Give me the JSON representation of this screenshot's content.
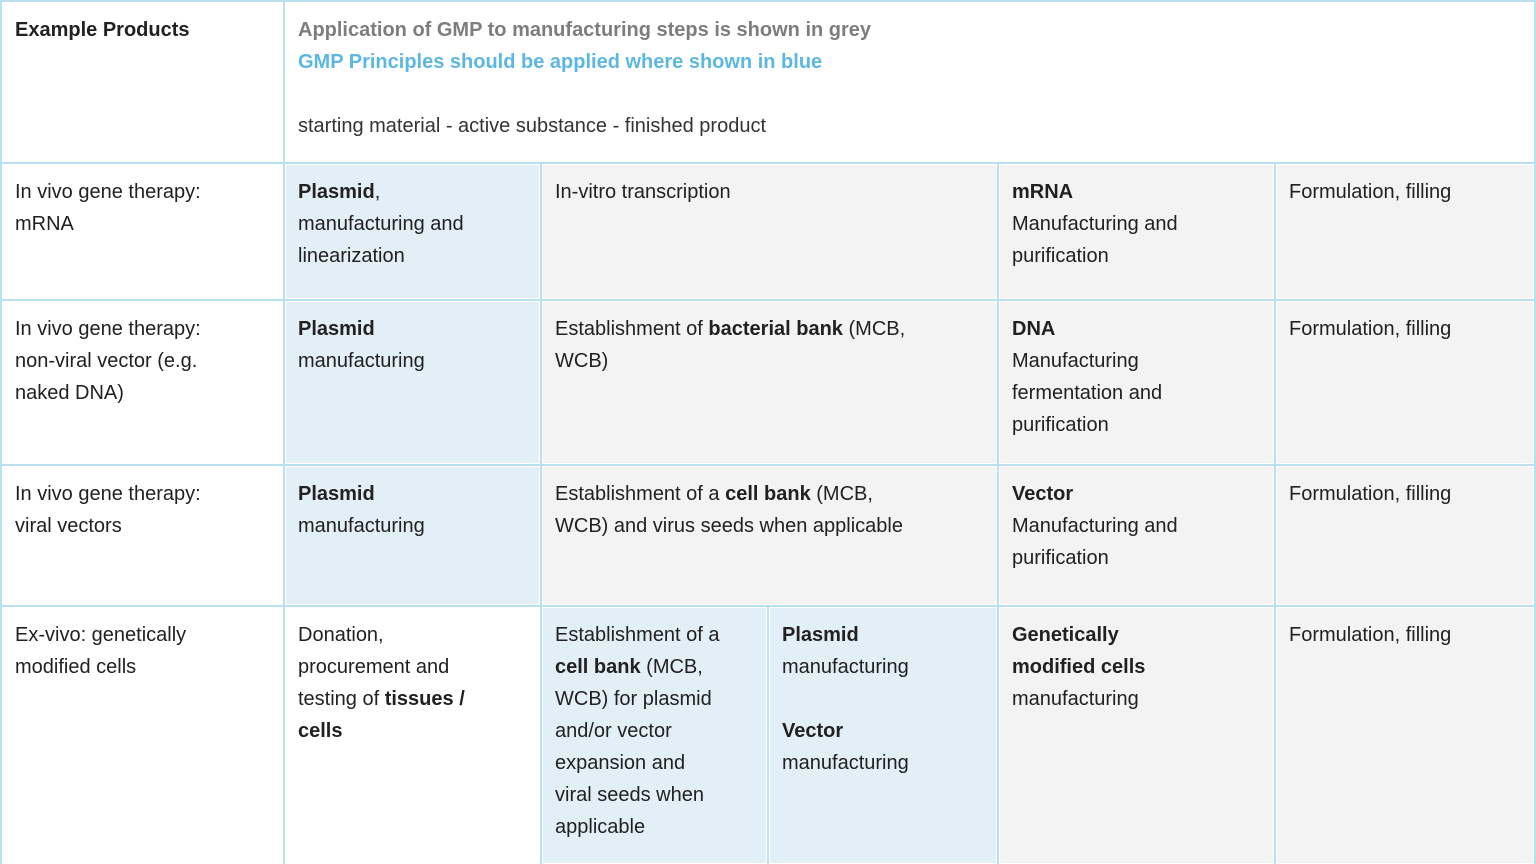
{
  "colors": {
    "grid_line": "#b9e0f0",
    "cell_blue": "#e2eff7",
    "cell_grey": "#f3f3f3",
    "cell_white": "#ffffff",
    "legend_grey_text": "#7d7d7d",
    "legend_blue_text": "#5cb7e1",
    "body_text": "#212121"
  },
  "header": {
    "example_products": "Example Products",
    "grey_note": "Application of GMP to manufacturing steps is shown in grey",
    "blue_note": "GMP Principles should be applied where shown in blue",
    "flow_line": "starting material - active substance - finished product"
  },
  "table": {
    "cells": [
      {
        "id": "r1c1",
        "gr": "2",
        "gc": "1/2",
        "bg": "white",
        "segs": [
          {
            "t": "In vivo gene therapy:"
          },
          {
            "br": true
          },
          {
            "t": "mRNA"
          }
        ]
      },
      {
        "id": "r1c2",
        "gr": "2",
        "gc": "2/3",
        "bg": "blue",
        "segs": [
          {
            "t": "Plasmid",
            "b": true
          },
          {
            "t": ","
          },
          {
            "br": true
          },
          {
            "t": "manufacturing and"
          },
          {
            "br": true
          },
          {
            "t": "linearization"
          }
        ]
      },
      {
        "id": "r1c3",
        "gr": "2",
        "gc": "3/5",
        "bg": "grey",
        "segs": [
          {
            "t": "In-vitro transcription"
          }
        ]
      },
      {
        "id": "r1c4",
        "gr": "2",
        "gc": "5/6",
        "bg": "grey",
        "segs": [
          {
            "t": "mRNA",
            "b": true
          },
          {
            "br": true
          },
          {
            "t": "Manufacturing and"
          },
          {
            "br": true
          },
          {
            "t": "purification"
          }
        ]
      },
      {
        "id": "r1c5",
        "gr": "2",
        "gc": "6/7",
        "bg": "grey",
        "segs": [
          {
            "t": "Formulation, filling"
          }
        ]
      },
      {
        "id": "r2c1",
        "gr": "3",
        "gc": "1/2",
        "bg": "white",
        "segs": [
          {
            "t": "In vivo gene therapy:"
          },
          {
            "br": true
          },
          {
            "t": "non-viral vector (e.g."
          },
          {
            "br": true
          },
          {
            "t": "naked DNA)"
          }
        ]
      },
      {
        "id": "r2c2",
        "gr": "3",
        "gc": "2/3",
        "bg": "blue",
        "segs": [
          {
            "t": "Plasmid",
            "b": true
          },
          {
            "br": true
          },
          {
            "t": "manufacturing"
          }
        ]
      },
      {
        "id": "r2c3",
        "gr": "3",
        "gc": "3/5",
        "bg": "grey",
        "segs": [
          {
            "t": "Establishment of "
          },
          {
            "t": "bacterial bank",
            "b": true
          },
          {
            "t": " (MCB,"
          },
          {
            "br": true
          },
          {
            "t": "WCB)"
          }
        ]
      },
      {
        "id": "r2c4",
        "gr": "3",
        "gc": "5/6",
        "bg": "grey",
        "segs": [
          {
            "t": "DNA",
            "b": true
          },
          {
            "br": true
          },
          {
            "t": "Manufacturing"
          },
          {
            "br": true
          },
          {
            "t": "fermentation and"
          },
          {
            "br": true
          },
          {
            "t": "purification"
          }
        ]
      },
      {
        "id": "r2c5",
        "gr": "3",
        "gc": "6/7",
        "bg": "grey",
        "segs": [
          {
            "t": "Formulation, filling"
          }
        ]
      },
      {
        "id": "r3c1",
        "gr": "4",
        "gc": "1/2",
        "bg": "white",
        "segs": [
          {
            "t": "In vivo gene therapy:"
          },
          {
            "br": true
          },
          {
            "t": "viral vectors"
          }
        ]
      },
      {
        "id": "r3c2",
        "gr": "4",
        "gc": "2/3",
        "bg": "blue",
        "segs": [
          {
            "t": "Plasmid",
            "b": true
          },
          {
            "br": true
          },
          {
            "t": "manufacturing"
          }
        ]
      },
      {
        "id": "r3c3",
        "gr": "4",
        "gc": "3/5",
        "bg": "grey",
        "segs": [
          {
            "t": "Establishment of a "
          },
          {
            "t": "cell bank",
            "b": true
          },
          {
            "t": " (MCB,"
          },
          {
            "br": true
          },
          {
            "t": "WCB) and virus seeds when applicable"
          }
        ]
      },
      {
        "id": "r3c4",
        "gr": "4",
        "gc": "5/6",
        "bg": "grey",
        "segs": [
          {
            "t": "Vector",
            "b": true
          },
          {
            "br": true
          },
          {
            "t": "Manufacturing and"
          },
          {
            "br": true
          },
          {
            "t": "purification"
          }
        ]
      },
      {
        "id": "r3c5",
        "gr": "4",
        "gc": "6/7",
        "bg": "grey",
        "segs": [
          {
            "t": "Formulation, filling"
          }
        ]
      },
      {
        "id": "r4c1",
        "gr": "5",
        "gc": "1/2",
        "bg": "white",
        "segs": [
          {
            "t": "Ex-vivo: genetically"
          },
          {
            "br": true
          },
          {
            "t": "modified cells"
          }
        ]
      },
      {
        "id": "r4c2",
        "gr": "5",
        "gc": "2/3",
        "bg": "white",
        "segs": [
          {
            "t": "Donation,"
          },
          {
            "br": true
          },
          {
            "t": "procurement and"
          },
          {
            "br": true
          },
          {
            "t": "testing of "
          },
          {
            "t": "tissues /",
            "b": true
          },
          {
            "br": true
          },
          {
            "t": "cells",
            "b": true
          }
        ]
      },
      {
        "id": "r4c3",
        "gr": "5",
        "gc": "3/4",
        "bg": "blue",
        "segs": [
          {
            "t": "Establishment of a"
          },
          {
            "br": true
          },
          {
            "t": "cell bank",
            "b": true
          },
          {
            "t": " (MCB,"
          },
          {
            "br": true
          },
          {
            "t": "WCB) for plasmid"
          },
          {
            "br": true
          },
          {
            "t": "and/or vector"
          },
          {
            "br": true
          },
          {
            "t": "expansion and"
          },
          {
            "br": true
          },
          {
            "t": "viral seeds when"
          },
          {
            "br": true
          },
          {
            "t": "applicable"
          }
        ]
      },
      {
        "id": "r4c4",
        "gr": "5",
        "gc": "4/5",
        "bg": "blue",
        "segs": [
          {
            "t": "Plasmid",
            "b": true
          },
          {
            "br": true
          },
          {
            "t": "manufacturing"
          },
          {
            "br": true
          },
          {
            "br": true
          },
          {
            "t": "Vector",
            "b": true
          },
          {
            "br": true
          },
          {
            "t": "manufacturing"
          }
        ]
      },
      {
        "id": "r4c5",
        "gr": "5",
        "gc": "5/6",
        "bg": "grey",
        "segs": [
          {
            "t": "Genetically",
            "b": true
          },
          {
            "br": true
          },
          {
            "t": "modified cells",
            "b": true
          },
          {
            "br": true
          },
          {
            "t": "manufacturing"
          }
        ]
      },
      {
        "id": "r4c6",
        "gr": "5",
        "gc": "6/7",
        "bg": "grey",
        "segs": [
          {
            "t": "Formulation, filling"
          }
        ]
      }
    ]
  }
}
